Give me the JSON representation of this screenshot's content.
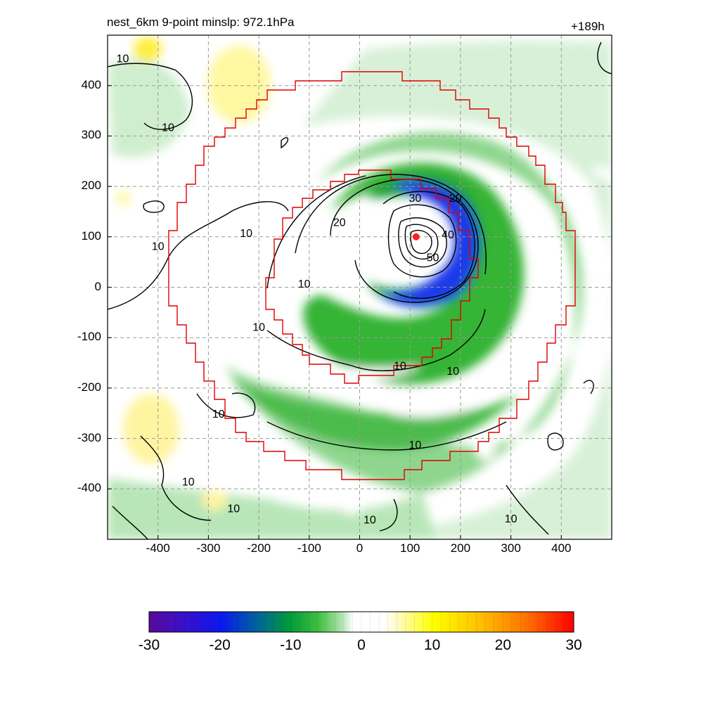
{
  "chart_data": {
    "type": "heatmap",
    "title_left": "nest_6km  9-point minslp: 972.1hPa",
    "title_right": "+189h",
    "xlim": [
      -500,
      500
    ],
    "ylim": [
      -500,
      500
    ],
    "x_ticks": [
      "-400",
      "-300",
      "-200",
      "-100",
      "0",
      "100",
      "200",
      "300",
      "400"
    ],
    "y_ticks": [
      "400",
      "300",
      "200",
      "100",
      "0",
      "-100",
      "-200",
      "-300",
      "-400"
    ],
    "grid": true,
    "colorbar": {
      "range": [
        -30,
        30
      ],
      "ticks": [
        "-30",
        "-20",
        "-10",
        "0",
        "10",
        "20",
        "30"
      ]
    },
    "center_marker": {
      "x": 112,
      "y": 100,
      "color": "#ff2020"
    },
    "contour_labels": [
      {
        "text": "10",
        "x": -470,
        "y": 455
      },
      {
        "text": "10",
        "x": -380,
        "y": 318
      },
      {
        "text": "10",
        "x": -225,
        "y": 108
      },
      {
        "text": "10",
        "x": -400,
        "y": 82
      },
      {
        "text": "10",
        "x": -110,
        "y": 8
      },
      {
        "text": "10",
        "x": -200,
        "y": -78
      },
      {
        "text": "10",
        "x": -280,
        "y": -250
      },
      {
        "text": "10",
        "x": -340,
        "y": -385
      },
      {
        "text": "10",
        "x": -250,
        "y": -438
      },
      {
        "text": "10",
        "x": 80,
        "y": -155
      },
      {
        "text": "10",
        "x": 185,
        "y": -165
      },
      {
        "text": "10",
        "x": 110,
        "y": -312
      },
      {
        "text": "10",
        "x": 300,
        "y": -458
      },
      {
        "text": "10",
        "x": 20,
        "y": -460
      },
      {
        "text": "20",
        "x": -40,
        "y": 130
      },
      {
        "text": "20",
        "x": 190,
        "y": 178
      },
      {
        "text": "30",
        "x": 110,
        "y": 178
      },
      {
        "text": "40",
        "x": 175,
        "y": 105
      },
      {
        "text": "50",
        "x": 145,
        "y": 60
      }
    ]
  }
}
